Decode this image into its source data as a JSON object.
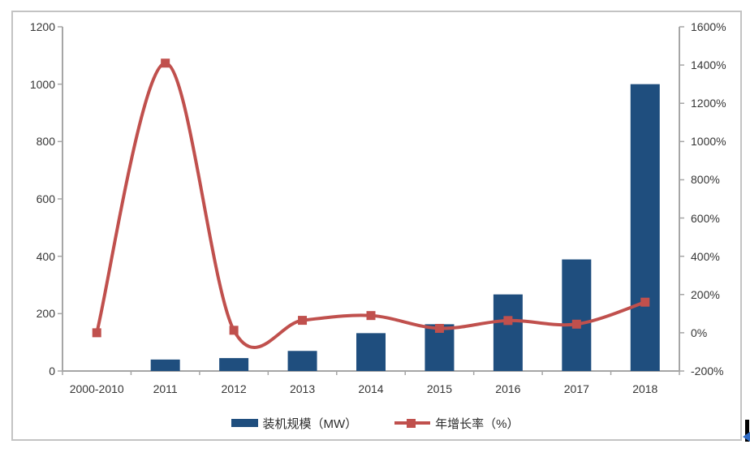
{
  "chart_data": {
    "type": "combo-bar-line",
    "title": "",
    "categories": [
      "2000-2010",
      "2011",
      "2012",
      "2013",
      "2014",
      "2015",
      "2016",
      "2017",
      "2018"
    ],
    "series": [
      {
        "name": "装机规模（MW）",
        "type": "bar",
        "axis": "left",
        "color": "#1f4e7e",
        "values": [
          0,
          40,
          45,
          70,
          132,
          163,
          267,
          389,
          1000
        ]
      },
      {
        "name": "年增长率（%）",
        "type": "line",
        "axis": "right",
        "color": "#c0504d",
        "smooth": true,
        "marker": "square",
        "values": [
          0,
          1410,
          13,
          65,
          90,
          23,
          64,
          45,
          160
        ]
      }
    ],
    "left_axis": {
      "min": 0,
      "max": 1200,
      "step": 200,
      "tick_labels": [
        "1200",
        "1000",
        "800",
        "600",
        "400",
        "200",
        "0"
      ]
    },
    "right_axis": {
      "min": -200,
      "max": 1600,
      "step": 200,
      "tick_labels": [
        "1600%",
        "1400%",
        "1200%",
        "1000%",
        "800%",
        "600%",
        "400%",
        "200%",
        "0%",
        "-200%"
      ]
    },
    "legend": {
      "position": "bottom",
      "items": [
        "装机规模（MW）",
        "年增长率（%）"
      ]
    },
    "grid": false,
    "axis_color": "#a6a6a6",
    "label_color": "#363636"
  }
}
